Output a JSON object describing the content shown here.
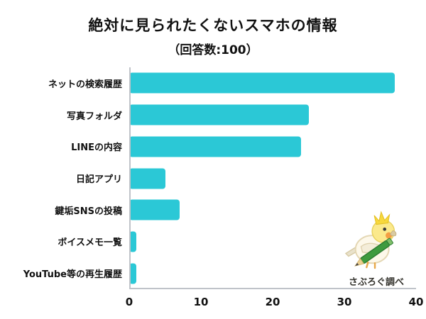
{
  "page": {
    "background": "#ffffff"
  },
  "chart_data": {
    "type": "bar",
    "orientation": "horizontal",
    "title": "絶対に見られたくないスマホの情報",
    "subtitle": "（回答数:100）",
    "categories": [
      "ネットの検索履歴",
      "写真フォルダ",
      "LINEの内容",
      "日記アプリ",
      "鍵垢SNSの投稿",
      "ボイスメモ一覧",
      "YouTube等の再生履歴"
    ],
    "values": [
      37,
      25,
      24,
      5,
      7,
      1,
      1
    ],
    "xlabel": "",
    "ylabel": "",
    "xlim": [
      0,
      40
    ],
    "xticks": [
      0,
      10,
      20,
      30,
      40
    ],
    "bar_color": "#2bc8d6",
    "axis_color": "#bfc3c9",
    "grid": "off",
    "legend": "none"
  },
  "mascot": {
    "caption": "さぶろぐ調べ"
  }
}
